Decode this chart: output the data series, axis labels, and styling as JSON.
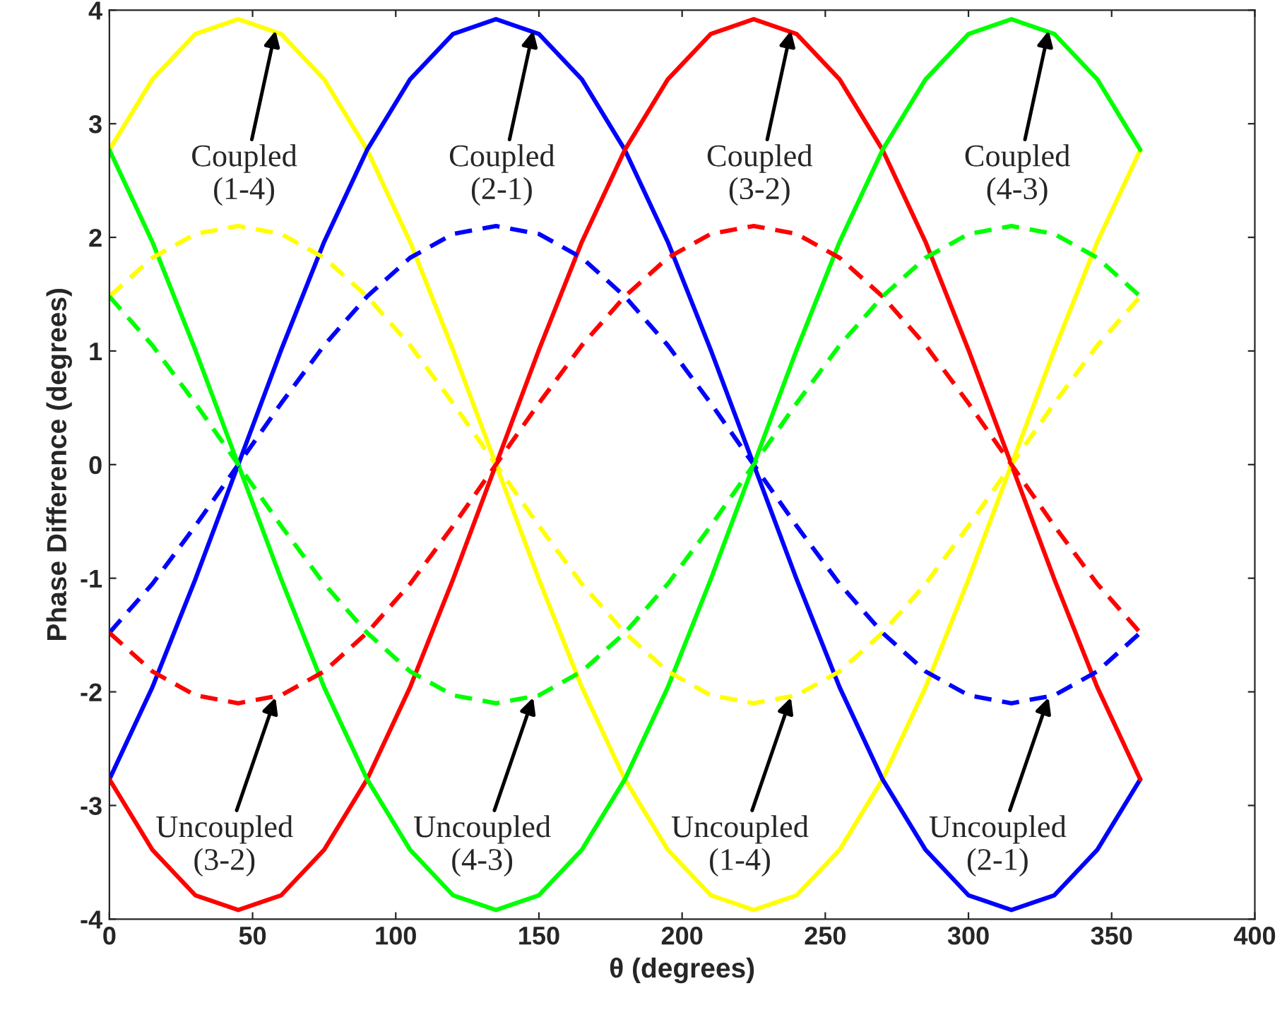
{
  "chart_data": {
    "type": "line",
    "xlabel": "θ (degrees)",
    "ylabel": "Phase Difference (degrees)",
    "x": [
      0,
      15,
      30,
      45,
      60,
      75,
      90,
      105,
      120,
      135,
      150,
      165,
      180,
      195,
      210,
      225,
      240,
      255,
      270,
      285,
      300,
      315,
      330,
      345,
      360
    ],
    "xlim": [
      0,
      400
    ],
    "xticks": [
      0,
      50,
      100,
      150,
      200,
      250,
      300,
      350,
      400
    ],
    "ylim": [
      -4,
      4
    ],
    "yticks": [
      -4,
      -3,
      -2,
      -1,
      0,
      1,
      2,
      3,
      4
    ],
    "grid": false,
    "legend": false,
    "series": [
      {
        "color": "#ffff00",
        "line_style": "solid",
        "values": [
          2.77,
          3.39,
          3.79,
          3.92,
          3.79,
          3.39,
          2.77,
          1.96,
          1.01,
          0,
          -1.01,
          -1.96,
          -2.77,
          -3.39,
          -3.79,
          -3.92,
          -3.79,
          -3.39,
          -2.77,
          -1.96,
          -1.01,
          0,
          1.01,
          1.96,
          2.77
        ]
      },
      {
        "color": "#0000ff",
        "line_style": "solid",
        "values": [
          -2.77,
          -1.96,
          -1.01,
          0,
          1.01,
          1.96,
          2.77,
          3.39,
          3.79,
          3.92,
          3.79,
          3.39,
          2.77,
          1.96,
          1.01,
          0,
          -1.01,
          -1.96,
          -2.77,
          -3.39,
          -3.79,
          -3.92,
          -3.79,
          -3.39,
          -2.77
        ]
      },
      {
        "color": "#ff0000",
        "line_style": "solid",
        "values": [
          -2.77,
          -3.39,
          -3.79,
          -3.92,
          -3.79,
          -3.39,
          -2.77,
          -1.96,
          -1.01,
          0,
          1.01,
          1.96,
          2.77,
          3.39,
          3.79,
          3.92,
          3.79,
          3.39,
          2.77,
          1.96,
          1.01,
          0,
          -1.01,
          -1.96,
          -2.77
        ]
      },
      {
        "color": "#00ff00",
        "line_style": "solid",
        "values": [
          2.77,
          1.96,
          1.01,
          0,
          -1.01,
          -1.96,
          -2.77,
          -3.39,
          -3.79,
          -3.92,
          -3.79,
          -3.39,
          -2.77,
          -1.96,
          -1.01,
          0,
          1.01,
          1.96,
          2.77,
          3.39,
          3.79,
          3.92,
          3.79,
          3.39,
          2.77
        ]
      },
      {
        "color": "#ffff00",
        "line_style": "dashed",
        "values": [
          1.48,
          1.82,
          2.03,
          2.1,
          2.03,
          1.82,
          1.48,
          1.05,
          0.54,
          0,
          -0.54,
          -1.05,
          -1.48,
          -1.82,
          -2.03,
          -2.1,
          -2.03,
          -1.82,
          -1.48,
          -1.05,
          -0.54,
          0,
          0.54,
          1.05,
          1.48
        ]
      },
      {
        "color": "#0000ff",
        "line_style": "dashed",
        "values": [
          -1.48,
          -1.05,
          -0.54,
          0,
          0.54,
          1.05,
          1.48,
          1.82,
          2.03,
          2.1,
          2.03,
          1.82,
          1.48,
          1.05,
          0.54,
          0,
          -0.54,
          -1.05,
          -1.48,
          -1.82,
          -2.03,
          -2.1,
          -2.03,
          -1.82,
          -1.48
        ]
      },
      {
        "color": "#ff0000",
        "line_style": "dashed",
        "values": [
          -1.48,
          -1.82,
          -2.03,
          -2.1,
          -2.03,
          -1.82,
          -1.48,
          -1.05,
          -0.54,
          0,
          0.54,
          1.05,
          1.48,
          1.82,
          2.03,
          2.1,
          2.03,
          1.82,
          1.48,
          1.05,
          0.54,
          0,
          -0.54,
          -1.05,
          -1.48
        ]
      },
      {
        "color": "#00ff00",
        "line_style": "dashed",
        "values": [
          1.48,
          1.05,
          0.54,
          0,
          -0.54,
          -1.05,
          -1.48,
          -1.82,
          -2.03,
          -2.1,
          -2.03,
          -1.82,
          -1.48,
          -1.05,
          -0.54,
          0,
          0.54,
          1.05,
          1.48,
          1.82,
          2.03,
          2.1,
          2.03,
          1.82,
          1.48
        ]
      }
    ],
    "annotations": [
      {
        "text": "Coupled\n(1-4)",
        "x": 58,
        "y": 3.82
      },
      {
        "text": "Coupled\n(2-1)",
        "x": 148,
        "y": 3.82
      },
      {
        "text": "Coupled\n(3-2)",
        "x": 238,
        "y": 3.82
      },
      {
        "text": "Coupled\n(4-3)",
        "x": 328,
        "y": 3.82
      },
      {
        "text": "Uncoupled\n(3-2)",
        "x": 58,
        "y": -2.05
      },
      {
        "text": "Uncoupled\n(4-3)",
        "x": 148,
        "y": -2.05
      },
      {
        "text": "Uncoupled\n(1-4)",
        "x": 238,
        "y": -2.05
      },
      {
        "text": "Uncoupled\n(2-1)",
        "x": 328,
        "y": -2.05
      }
    ]
  }
}
